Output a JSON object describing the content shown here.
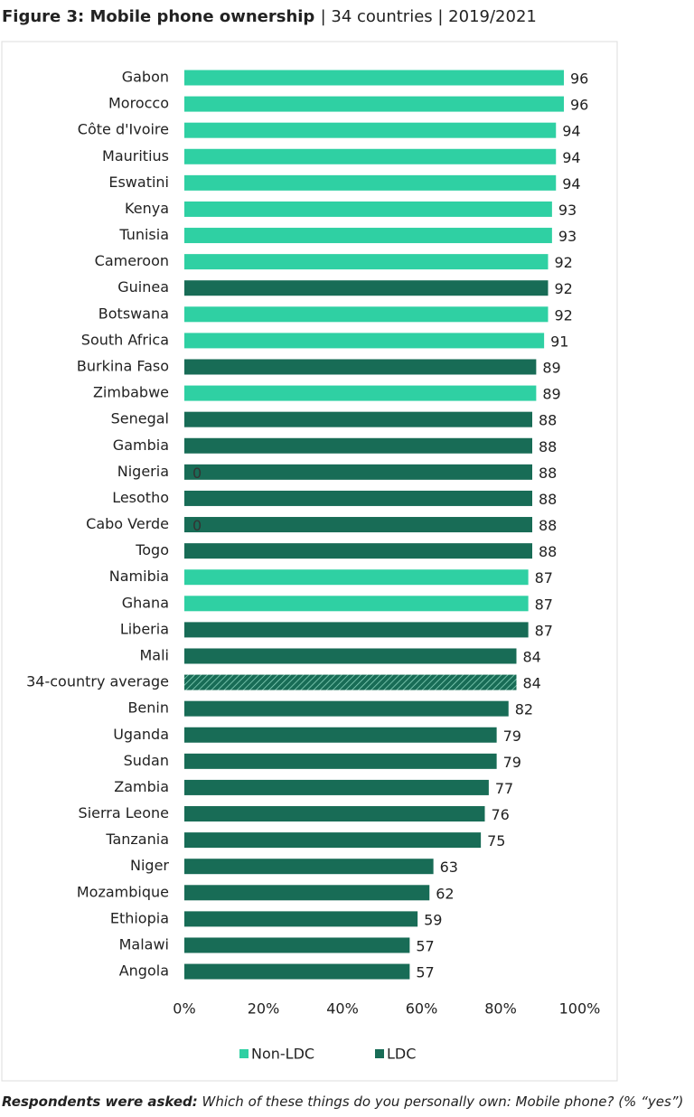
{
  "chart_data": {
    "type": "bar",
    "orientation": "horizontal",
    "title": "Figure 3: Mobile phone ownership",
    "subtitle": "| 34 countries | 2019/2021",
    "categories": [
      "Gabon",
      "Morocco",
      "Côte d'Ivoire",
      "Mauritius",
      "Eswatini",
      "Kenya",
      "Tunisia",
      "Cameroon",
      "Guinea",
      "Botswana",
      "South Africa",
      "Burkina Faso",
      "Zimbabwe",
      "Senegal",
      "Gambia",
      "Nigeria",
      "Lesotho",
      "Cabo Verde",
      "Togo",
      "Namibia",
      "Ghana",
      "Liberia",
      "Mali",
      "34-country average",
      "Benin",
      "Uganda",
      "Sudan",
      "Zambia",
      "Sierra Leone",
      "Tanzania",
      "Niger",
      "Mozambique",
      "Ethiopia",
      "Malawi",
      "Angola"
    ],
    "series": [
      {
        "name": "Non-LDC",
        "color": "#2fd0a3",
        "values": [
          96,
          96,
          94,
          94,
          94,
          93,
          93,
          92,
          null,
          92,
          91,
          null,
          89,
          null,
          null,
          null,
          null,
          null,
          null,
          87,
          87,
          null,
          null,
          null,
          null,
          null,
          null,
          null,
          null,
          null,
          null,
          null,
          null,
          null,
          null
        ]
      },
      {
        "name": "LDC",
        "color": "#186c56",
        "values": [
          null,
          null,
          null,
          null,
          null,
          null,
          null,
          null,
          92,
          null,
          null,
          89,
          null,
          88,
          88,
          88,
          88,
          88,
          88,
          null,
          null,
          87,
          84,
          null,
          82,
          79,
          79,
          77,
          76,
          75,
          63,
          62,
          59,
          57,
          57
        ]
      },
      {
        "color": "#186c56",
        "pattern": "hatch",
        "values": [
          null,
          null,
          null,
          null,
          null,
          null,
          null,
          null,
          null,
          null,
          null,
          null,
          null,
          null,
          null,
          null,
          null,
          null,
          null,
          null,
          null,
          null,
          null,
          84,
          null,
          null,
          null,
          null,
          null,
          null,
          null,
          null,
          null,
          null,
          null
        ]
      }
    ],
    "annotations": [
      {
        "text": "0",
        "category": "Nigeria"
      },
      {
        "text": "0",
        "category": "Cabo Verde"
      }
    ],
    "xlim": [
      0,
      100
    ],
    "xticks": [
      {
        "value": 0,
        "label": "0%"
      },
      {
        "value": 20,
        "label": "20%"
      },
      {
        "value": 40,
        "label": "40%"
      },
      {
        "value": 60,
        "label": "60%"
      },
      {
        "value": 80,
        "label": "80%"
      },
      {
        "value": 100,
        "label": "100%"
      }
    ],
    "grid": false,
    "legend": "bottom",
    "footnote_lead": "Respondents were asked:",
    "footnote": "Which of these things do you personally own: Mobile phone? (% “yes”)"
  }
}
